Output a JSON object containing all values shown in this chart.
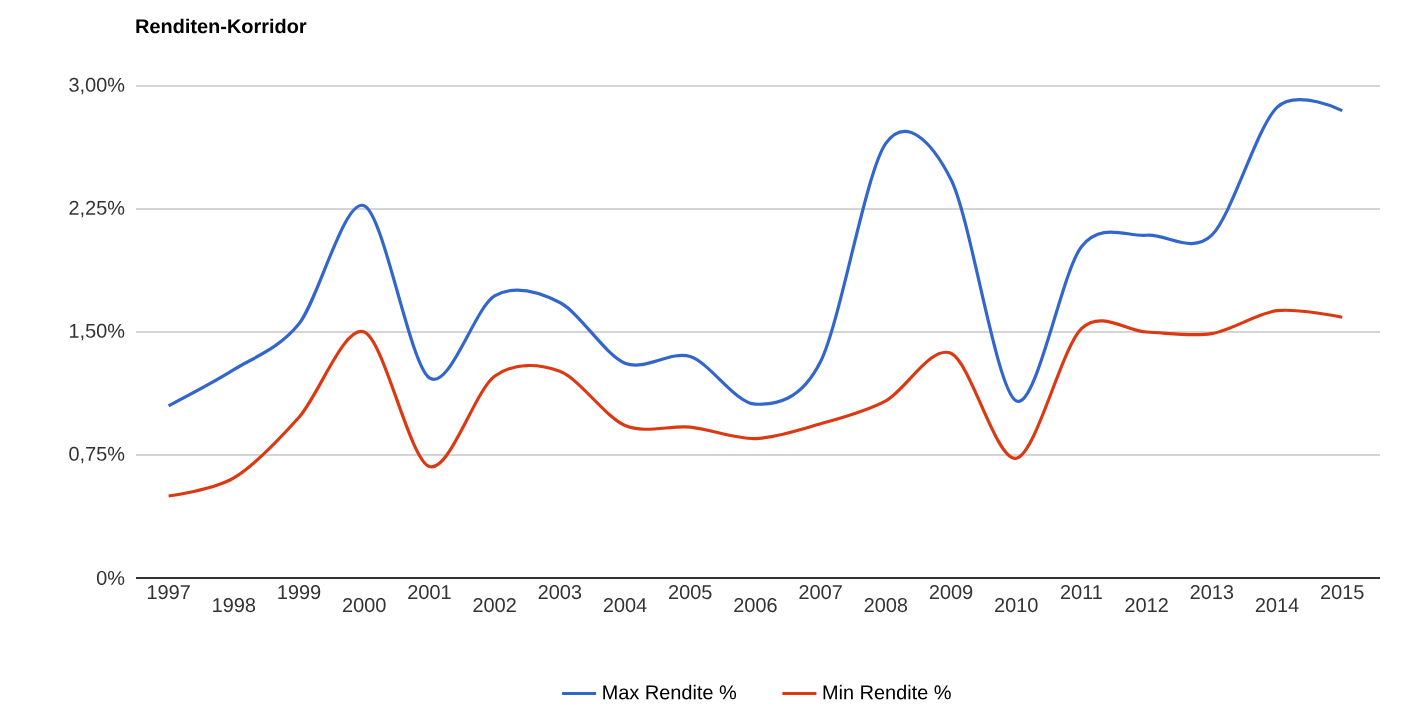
{
  "chart_data": {
    "type": "line",
    "title": "Renditen-Korridor",
    "categories": [
      "1997",
      "1998",
      "1999",
      "2000",
      "2001",
      "2002",
      "2003",
      "2004",
      "2005",
      "2006",
      "2007",
      "2008",
      "2009",
      "2010",
      "2011",
      "2012",
      "2013",
      "2014",
      "2015"
    ],
    "series": [
      {
        "name": "Max Rendite %",
        "color": "#3366cc",
        "values": [
          1.05,
          1.27,
          1.55,
          2.27,
          1.22,
          1.72,
          1.68,
          1.31,
          1.35,
          1.06,
          1.32,
          2.65,
          2.43,
          1.08,
          2.02,
          2.09,
          2.09,
          2.87,
          2.85
        ]
      },
      {
        "name": "Min Rendite %",
        "color": "#dc3912",
        "values": [
          0.5,
          0.61,
          0.98,
          1.5,
          0.68,
          1.23,
          1.26,
          0.93,
          0.92,
          0.85,
          0.94,
          1.08,
          1.37,
          0.73,
          1.52,
          1.5,
          1.49,
          1.63,
          1.59
        ]
      }
    ],
    "ylim": [
      0,
      3
    ],
    "yticks": [
      {
        "value": 0,
        "label": "0%"
      },
      {
        "value": 0.75,
        "label": "0,75%"
      },
      {
        "value": 1.5,
        "label": "1,50%"
      },
      {
        "value": 2.25,
        "label": "2,25%"
      },
      {
        "value": 3,
        "label": "3,00%"
      }
    ],
    "grid": "y",
    "legend": "bottom",
    "marker": "none",
    "line_style": "solid"
  }
}
